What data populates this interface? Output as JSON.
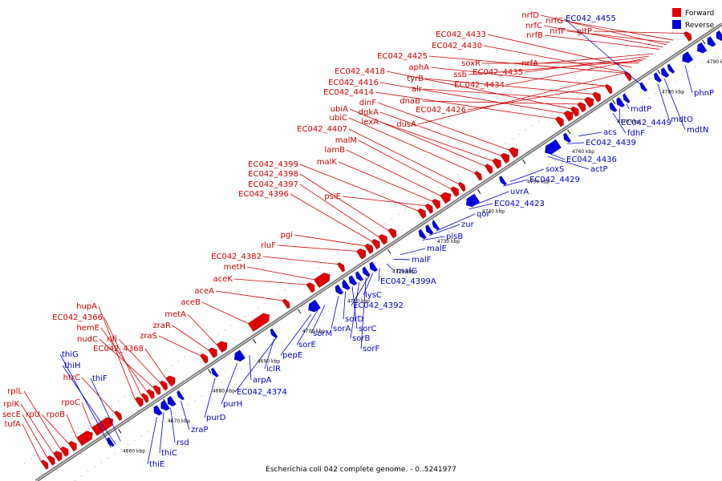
{
  "caption": "Escherichia coli 042 complete genome. - 0..5241977",
  "legend": {
    "forward_label": "Forward",
    "reverse_label": "Reverse",
    "forward_color": "#e00000",
    "reverse_color": "#0000e0"
  },
  "axis": {
    "tick_labels": [
      "4660 kbp",
      "4670 kbp",
      "4680 kbp",
      "4690 kbp",
      "4700 kbp",
      "4710 kbp",
      "4720 kbp",
      "4730 kbp",
      "4740 kbp",
      "4750 kbp",
      "4760 kbp",
      "4770 kbp",
      "4780 kbp",
      "4790 kbp"
    ]
  },
  "forward_genes": [
    "tufA",
    "secE",
    "rplK",
    "rplL",
    "rpU",
    "rpoB",
    "rpoC",
    "htrC",
    "hupA",
    "EC042_4366",
    "hemE",
    "nudC",
    "nfi",
    "EC042_4368",
    "zraS",
    "zraR",
    "metA",
    "aceB",
    "aceA",
    "aceK",
    "metH",
    "EC042_4382",
    "rluF",
    "pgi",
    "EC042_4396",
    "EC042_4397",
    "EC042_4398",
    "EC042_4399",
    "psiE",
    "malK",
    "lamB",
    "malM",
    "EC042_4407",
    "ubiC",
    "ubiA",
    "lexA",
    "dgkA",
    "dinF",
    "EC042_4414",
    "EC042_4416",
    "EC042_4418",
    "dnaB",
    "alr",
    "tyrB",
    "aphA",
    "EC042_4425",
    "dusA",
    "EC042_4426",
    "EC042_4430",
    "EC042_4433",
    "soxR",
    "ssb",
    "EC042_4434",
    "EC042_4435",
    "nrfA",
    "nrfB",
    "nrfC",
    "nrfD",
    "nrfF",
    "nrfG",
    "gltP"
  ],
  "reverse_genes": [
    "thiG",
    "thiH",
    "thiF",
    "thiE",
    "thiC",
    "rsd",
    "zraP",
    "purD",
    "purH",
    "arpA",
    "iclR",
    "EC042_4374",
    "pepE",
    "sorE",
    "sorM",
    "sorA",
    "sorD",
    "sorC",
    "sorB",
    "sorF",
    "EC042_4392",
    "lysC",
    "EC042_4399A",
    "malG",
    "malF",
    "malE",
    "plsB",
    "zur",
    "qor",
    "EC042_4423",
    "uvrA",
    "EC042_4429",
    "soxS",
    "actP",
    "EC042_4436",
    "EC042_4439",
    "acs",
    "fdhF",
    "EC042_4449",
    "mdtP",
    "mdtO",
    "mdtN",
    "phnP",
    "EC042_4455"
  ]
}
